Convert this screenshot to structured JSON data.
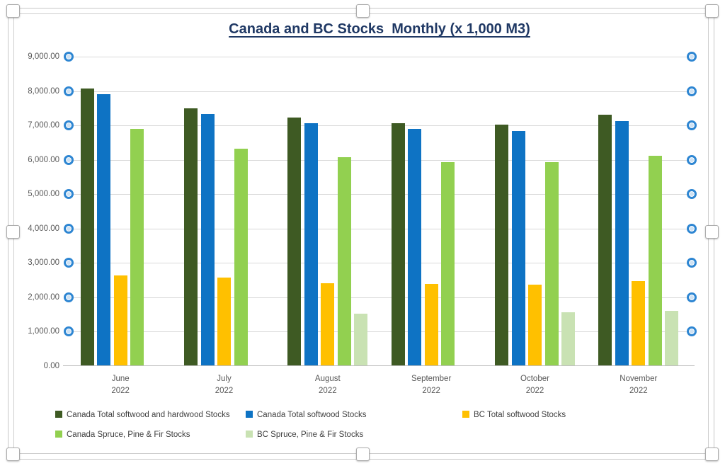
{
  "title": "Canada and BC Stocks  Monthly (x 1,000 M3)",
  "chart_data": {
    "type": "bar",
    "categories": [
      "June",
      "July",
      "August",
      "September",
      "October",
      "November"
    ],
    "category_sublabel": "2022",
    "series": [
      {
        "name": "Canada Total softwood and hardwood Stocks",
        "color": "#3e5a23",
        "values": [
          8050,
          7480,
          7210,
          7040,
          7010,
          7300
        ]
      },
      {
        "name": "Canada Total softwood Stocks",
        "color": "#0e73c4",
        "values": [
          7880,
          7320,
          7050,
          6880,
          6820,
          7100
        ]
      },
      {
        "name": "BC Total softwood Stocks",
        "color": "#ffc000",
        "values": [
          2620,
          2550,
          2390,
          2360,
          2340,
          2450
        ]
      },
      {
        "name": "Canada Spruce, Pine & Fir Stocks",
        "color": "#92d050",
        "values": [
          6880,
          6310,
          6060,
          5920,
          5920,
          6100
        ]
      },
      {
        "name": "BC Spruce, Pine & Fir Stocks",
        "color": "#c9e2b3",
        "values": [
          0,
          0,
          1500,
          0,
          1550,
          1580
        ]
      }
    ],
    "ylim": [
      0,
      9000
    ],
    "ytick_step": 1000,
    "ytick_labels": [
      "0.00",
      "1,000.00",
      "2,000.00",
      "3,000.00",
      "4,000.00",
      "5,000.00",
      "6,000.00",
      "7,000.00",
      "8,000.00",
      "9,000.00"
    ],
    "grid": true,
    "legend_position": "bottom",
    "legend_rows": [
      [
        0,
        1,
        2
      ],
      [
        3,
        4
      ]
    ]
  },
  "colors": {
    "title_text": "#1f3864",
    "axis_text": "#595959",
    "legend_text": "#404040",
    "gridline": "#d9d9d9",
    "axis_line": "#bfbfbf",
    "gridline_marker_ring": "#2e86d2",
    "gridline_marker_fill": "#cfe2f3"
  }
}
